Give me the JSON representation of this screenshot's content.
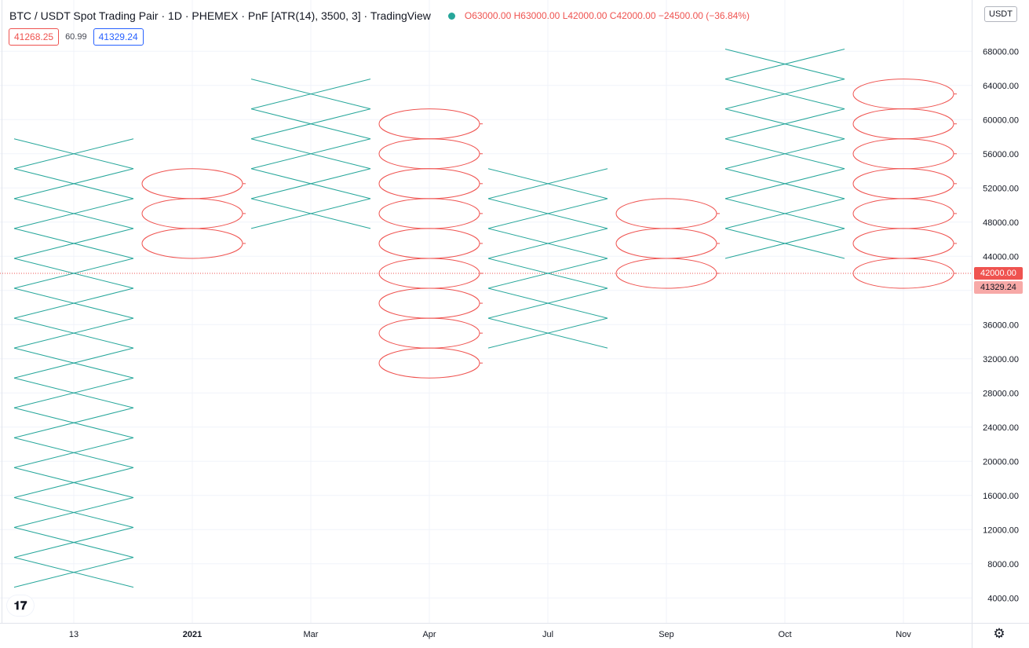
{
  "header": {
    "title": "BTC / USDT Spot Trading Pair · 1D · PHEMEX · PnF [ATR(14), 3500, 3] · TradingView",
    "ohlc": [
      {
        "label": "O",
        "value": "63000.00"
      },
      {
        "label": "H",
        "value": "63000.00"
      },
      {
        "label": "L",
        "value": "42000.00"
      },
      {
        "label": "C",
        "value": "42000.00"
      }
    ],
    "change": "−24500.00 (−36.84%)"
  },
  "quote": {
    "sell": "41268.25",
    "spread": "60.99",
    "buy": "41329.24"
  },
  "price_axis": {
    "currency": "USDT",
    "last_price_label": "42000.00",
    "bid_label": "41329.24"
  },
  "colors": {
    "x_color": "#26a69a",
    "o_color": "#ef5350",
    "grid": "#f0f3fa",
    "text": "#131722"
  },
  "icons": {
    "logo": "tradingview-logo-icon",
    "settings": "gear-icon",
    "status": "market-status-dot-icon"
  },
  "chart_data": {
    "type": "point-and-figure",
    "box_size": 3500,
    "reversal": 3,
    "ylim": [
      2000,
      72000
    ],
    "y_ticks": [
      4000,
      8000,
      12000,
      16000,
      20000,
      24000,
      28000,
      32000,
      36000,
      40000,
      44000,
      48000,
      52000,
      56000,
      60000,
      64000,
      68000
    ],
    "y_tick_labels": [
      "4000.00",
      "8000.00",
      "12000.00",
      "16000.00",
      "20000.00",
      "24000.00",
      "28000.00",
      "32000.00",
      "36000.00",
      "40000.00",
      "44000.00",
      "48000.00",
      "52000.00",
      "56000.00",
      "60000.00",
      "64000.00",
      "68000.00"
    ],
    "x_labels": [
      "13",
      "2021",
      "Mar",
      "Apr",
      "Jul",
      "Sep",
      "Oct",
      "Nov"
    ],
    "columns": [
      {
        "type": "X",
        "low": 7000,
        "high": 56000
      },
      {
        "type": "O",
        "low": 45500,
        "high": 52500
      },
      {
        "type": "X",
        "low": 49000,
        "high": 63000
      },
      {
        "type": "O",
        "low": 31500,
        "high": 59500
      },
      {
        "type": "X",
        "low": 35000,
        "high": 52500
      },
      {
        "type": "O",
        "low": 42000,
        "high": 49000
      },
      {
        "type": "X",
        "low": 45500,
        "high": 66500
      },
      {
        "type": "O",
        "low": 42000,
        "high": 63000
      }
    ],
    "last_price": 42000,
    "bid_price": 41329.24
  }
}
